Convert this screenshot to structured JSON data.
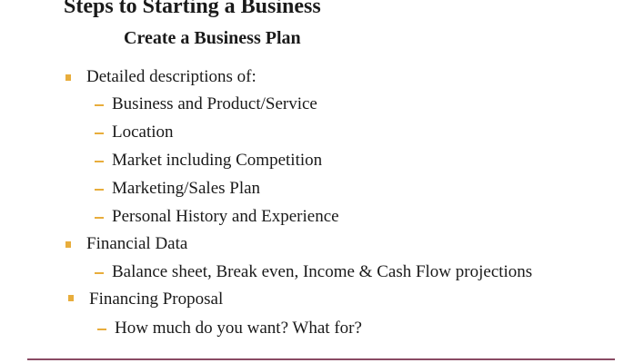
{
  "slide": {
    "title": "Steps to Starting a Business",
    "subtitle": "Create a Business Plan"
  },
  "bullets": [
    {
      "text": "Detailed descriptions of:",
      "subitems": [
        "Business and Product/Service",
        "Location",
        "Market including Competition",
        "Marketing/Sales Plan",
        "Personal History and Experience"
      ]
    },
    {
      "text": "Financial Data",
      "subitems": [
        "Balance sheet, Break even, Income & Cash Flow projections"
      ]
    },
    {
      "text": "Financing Proposal",
      "subitems": [
        "How much do you want? What for?"
      ]
    }
  ],
  "colors": {
    "bullet_accent": "#e8ad3c",
    "footer_rule": "#8a4b64"
  }
}
